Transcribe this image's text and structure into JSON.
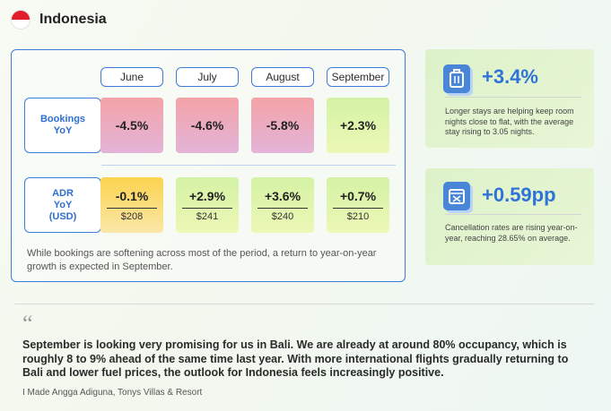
{
  "header": {
    "country": "Indonesia"
  },
  "table": {
    "months": [
      "June",
      "July",
      "August",
      "September"
    ],
    "bookings": {
      "label_line1": "Bookings",
      "label_line2": "YoY",
      "values": [
        "-4.5%",
        "-4.6%",
        "-5.8%",
        "+2.3%"
      ]
    },
    "adr": {
      "label_line1": "ADR",
      "label_line2": "YoY",
      "label_line3": "(USD)",
      "values": [
        "-0.1%",
        "+2.9%",
        "+3.6%",
        "+0.7%"
      ],
      "amounts": [
        "$208",
        "$241",
        "$240",
        "$210"
      ]
    },
    "note": "While bookings are softening across most of the period, a return to year-on-year growth is expected in September."
  },
  "kpi_stay": {
    "icon": "luggage-icon",
    "value": "+3.4%",
    "description": "Longer stays are helping keep room nights close to flat, with the average stay rising to 3.05 nights."
  },
  "kpi_cancel": {
    "icon": "calendar-cancel-icon",
    "value": "+0.59pp",
    "description": "Cancellation rates are rising year-on-year, reaching 28.65% on average."
  },
  "quote": {
    "text": "September is looking very promising for us in Bali. We are already at around 80% occupancy, which is roughly 8 to 9% ahead of the same time last year. With more international flights gradually returning to Bali and lower fuel prices, the outlook for Indonesia feels increasingly positive.",
    "attribution": "I Made Angga Adiguna, Tonys Villas & Resort"
  },
  "colors": {
    "accent": "#2f73d6",
    "negative": "#f4a3a8",
    "positive": "#d4f2a4",
    "warning": "#fbd34f"
  }
}
